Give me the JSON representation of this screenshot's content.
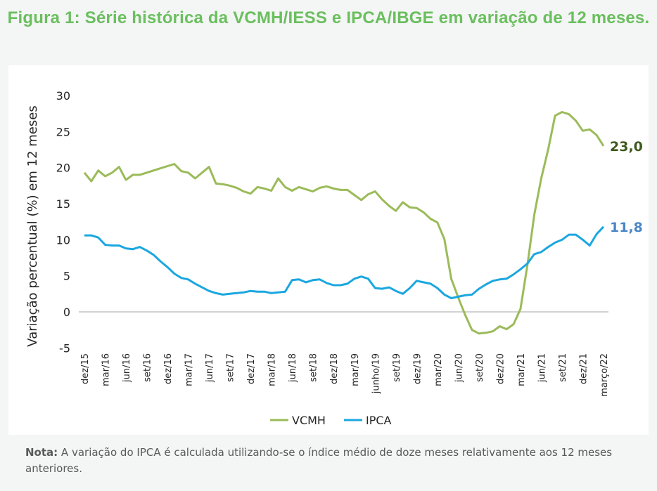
{
  "title": "Figura 1: Série histórica da VCMH/IESS e IPCA/IBGE em variação de 12 meses.",
  "note": {
    "label": "Nota:",
    "text": " A variação do IPCA é calculada utilizando-se o índice médio de doze meses relativamente aos 12 meses anteriores."
  },
  "chart_data": {
    "type": "line",
    "title": "Figura 1: Série histórica da VCMH/IESS e IPCA/IBGE em variação de 12 meses.",
    "xlabel": "",
    "ylabel": "Variação percentual (%) em 12 meses",
    "ylim": [
      -5,
      30
    ],
    "yticks": [
      30,
      25,
      20,
      15,
      10,
      5,
      0,
      -5
    ],
    "x_tick_labels": [
      "dez/15",
      "mar/16",
      "jun/16",
      "set/16",
      "dez/16",
      "mar/17",
      "jun/17",
      "set/17",
      "dez/17",
      "mar/18",
      "jun/18",
      "set/18",
      "dez/18",
      "mar/19",
      "junho/19",
      "set/19",
      "dez/19",
      "mar/20",
      "jun/20",
      "set/20",
      "dez/20",
      "mar/21",
      "jun/21",
      "set/21",
      "dez/21",
      "março/22"
    ],
    "x_tick_every_months": 3,
    "n_points": 76,
    "legend_position": "bottom",
    "grid": false,
    "series": [
      {
        "name": "VCMH",
        "color": "#9bbb59",
        "end_label": "23,0",
        "end_label_color": "#3d5a1e",
        "values": [
          19.3,
          18.1,
          19.6,
          18.8,
          19.3,
          20.1,
          18.3,
          19.0,
          19.0,
          19.3,
          19.6,
          19.9,
          20.2,
          20.5,
          19.5,
          19.3,
          18.5,
          19.3,
          20.1,
          17.8,
          17.7,
          17.5,
          17.2,
          16.7,
          16.4,
          17.3,
          17.1,
          16.8,
          18.5,
          17.3,
          16.8,
          17.3,
          17.0,
          16.7,
          17.2,
          17.4,
          17.1,
          16.9,
          16.9,
          16.2,
          15.5,
          16.3,
          16.7,
          15.6,
          14.7,
          14.0,
          15.2,
          14.5,
          14.4,
          13.8,
          12.9,
          12.4,
          10.1,
          4.6,
          2.0,
          -0.4,
          -2.5,
          -3.0,
          -2.9,
          -2.7,
          -2.0,
          -2.4,
          -1.7,
          0.4,
          6.5,
          13.5,
          18.5,
          22.5,
          27.2,
          27.7,
          27.4,
          26.5,
          25.1,
          25.3,
          24.5,
          23.0
        ]
      },
      {
        "name": "IPCA",
        "color": "#1ba7e0",
        "end_label": "11,8",
        "end_label_color": "#4a86c8",
        "values": [
          10.6,
          10.6,
          10.3,
          9.3,
          9.2,
          9.2,
          8.8,
          8.7,
          9.0,
          8.5,
          7.9,
          7.0,
          6.2,
          5.3,
          4.7,
          4.5,
          3.9,
          3.4,
          2.9,
          2.6,
          2.4,
          2.5,
          2.6,
          2.7,
          2.9,
          2.8,
          2.8,
          2.6,
          2.7,
          2.8,
          4.4,
          4.5,
          4.1,
          4.4,
          4.5,
          4.0,
          3.7,
          3.7,
          3.9,
          4.6,
          4.9,
          4.6,
          3.3,
          3.2,
          3.4,
          2.9,
          2.5,
          3.3,
          4.3,
          4.1,
          3.9,
          3.3,
          2.4,
          1.9,
          2.1,
          2.3,
          2.4,
          3.2,
          3.8,
          4.3,
          4.5,
          4.6,
          5.2,
          5.9,
          6.7,
          8.0,
          8.3,
          9.0,
          9.6,
          10.0,
          10.7,
          10.7,
          10.0,
          9.2,
          10.8,
          11.8
        ]
      }
    ]
  }
}
